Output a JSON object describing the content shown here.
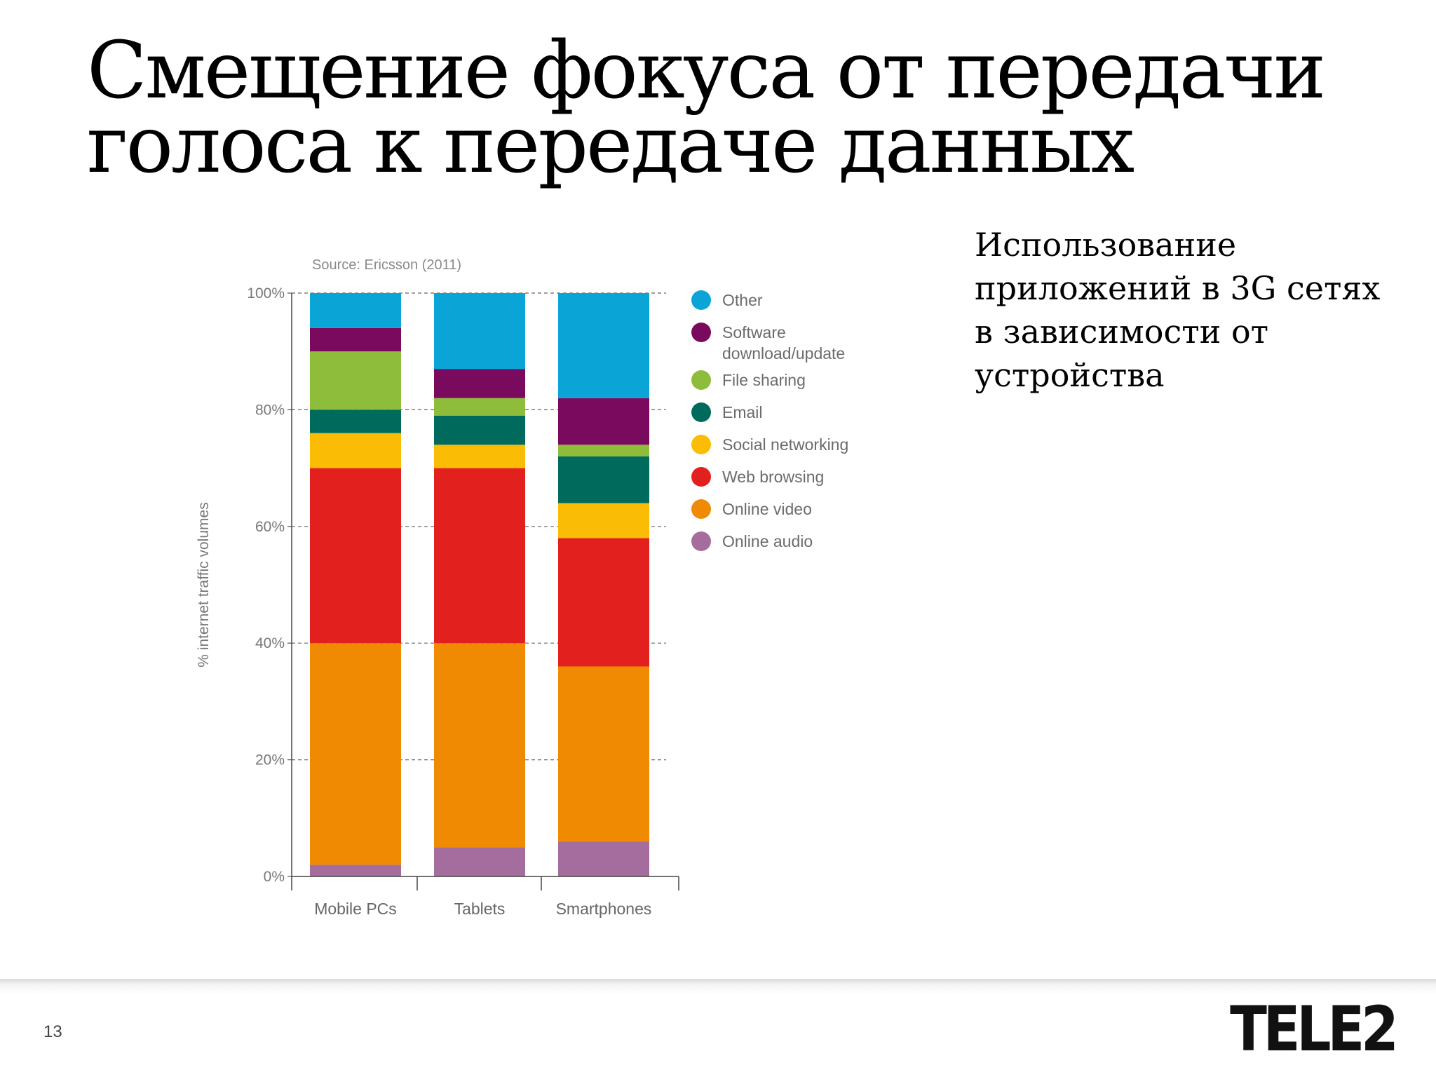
{
  "slide": {
    "title": "Смещение фокуса от передачи голоса к передаче данных",
    "side_text": "Использование приложений в 3G сетях в зависимости от устройства",
    "page_number": "13",
    "logo": "TELE2"
  },
  "chart_data": {
    "type": "bar",
    "stacked": true,
    "source": "Source: Ericsson (2011)",
    "ylabel": "% internet traffic volumes",
    "ylim": [
      0,
      100
    ],
    "yticks": [
      "0%",
      "20%",
      "40%",
      "60%",
      "80%",
      "100%"
    ],
    "categories": [
      "Mobile PCs",
      "Tablets",
      "Smartphones"
    ],
    "series": [
      {
        "name": "Online audio",
        "color": "#a56c9e",
        "values": [
          2,
          5,
          6
        ]
      },
      {
        "name": "Online video",
        "color": "#ef8a02",
        "values": [
          38,
          35,
          30
        ]
      },
      {
        "name": "Web browsing",
        "color": "#e2211f",
        "values": [
          30,
          30,
          22
        ]
      },
      {
        "name": "Social networking",
        "color": "#fbbc05",
        "values": [
          6,
          4,
          6
        ]
      },
      {
        "name": "Email",
        "color": "#006b5d",
        "values": [
          4,
          5,
          8
        ]
      },
      {
        "name": "File sharing",
        "color": "#8dbd3b",
        "values": [
          10,
          3,
          2
        ]
      },
      {
        "name": "Software download/update",
        "color": "#7a0a5d",
        "values": [
          4,
          5,
          8
        ]
      },
      {
        "name": "Other",
        "color": "#0aa5d6",
        "values": [
          6,
          13,
          18
        ]
      }
    ],
    "legend_order": [
      "Other",
      "Software download/update",
      "File sharing",
      "Email",
      "Social networking",
      "Web browsing",
      "Online video",
      "Online audio"
    ],
    "legend_labels": {
      "Other": [
        "Other"
      ],
      "Software download/update": [
        "Software",
        "download/update"
      ],
      "File sharing": [
        "File sharing"
      ],
      "Email": [
        "Email"
      ],
      "Social networking": [
        "Social networking"
      ],
      "Web browsing": [
        "Web browsing"
      ],
      "Online video": [
        "Online video"
      ],
      "Online audio": [
        "Online audio"
      ]
    },
    "grid": "dashed",
    "legend_position": "right"
  }
}
